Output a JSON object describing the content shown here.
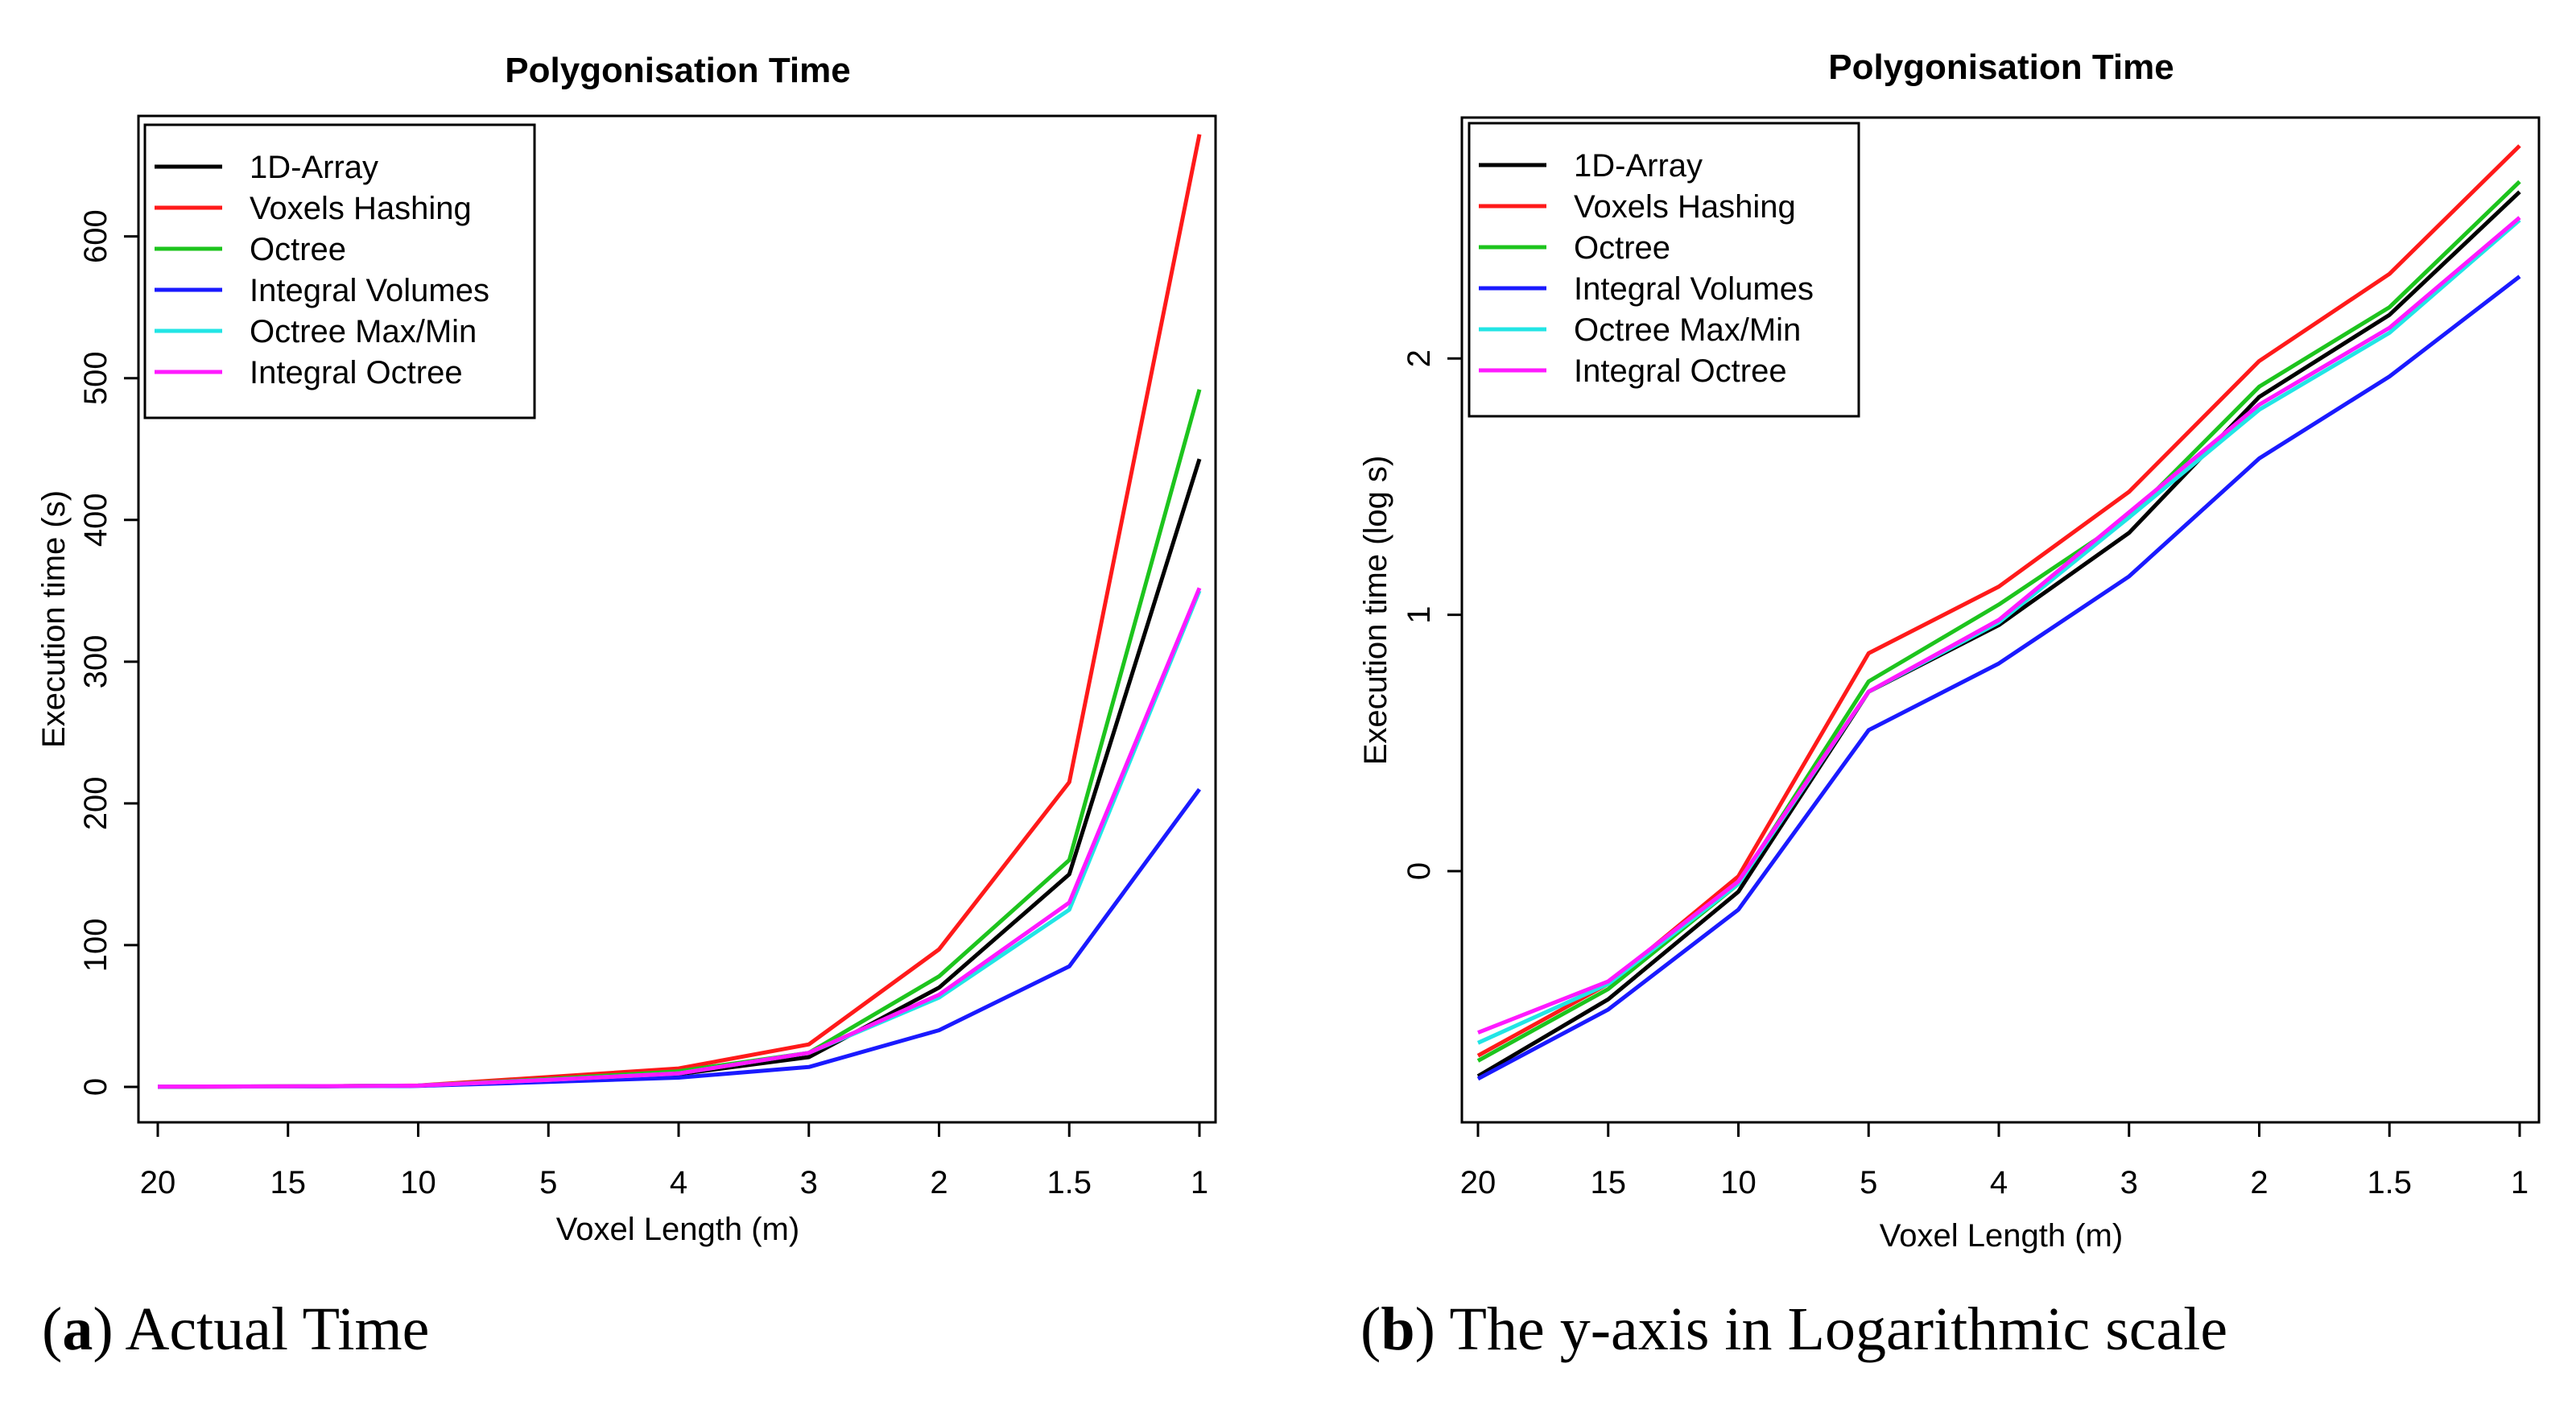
{
  "chart_data": [
    {
      "type": "line",
      "title": "Polygonisation Time",
      "xlabel": "Voxel Length (m)",
      "ylabel": "Execution time (s)",
      "categories": [
        "20",
        "15",
        "10",
        "5",
        "4",
        "3",
        "2",
        "1.5",
        "1"
      ],
      "ylim": [
        -25,
        685
      ],
      "yticks": [
        0,
        100,
        200,
        300,
        400,
        500,
        600
      ],
      "legend_position": "top-left",
      "grid": false,
      "series": [
        {
          "name": "1D-Array",
          "color": "#000000",
          "values": [
            0.17,
            0.32,
            0.85,
            5,
            9,
            21,
            70,
            150,
            443
          ]
        },
        {
          "name": "Voxels Hashing",
          "color": "#ff1a1a",
          "values": [
            0.19,
            0.36,
            0.95,
            7,
            13,
            30,
            97,
            215,
            672
          ]
        },
        {
          "name": "Octree",
          "color": "#1dc41d",
          "values": [
            0.18,
            0.33,
            0.9,
            5.5,
            11,
            24,
            78,
            160,
            492
          ]
        },
        {
          "name": "Integral Volumes",
          "color": "#1a1aff",
          "values": [
            0.16,
            0.28,
            0.7,
            3.5,
            6.5,
            14,
            40,
            85,
            210
          ]
        },
        {
          "name": "Octree Max/Min",
          "color": "#22e5e5",
          "values": [
            0.21,
            0.36,
            0.9,
            5,
            9.5,
            24,
            63,
            125,
            350
          ]
        },
        {
          "name": "Integral Octree",
          "color": "#ff1aff",
          "values": [
            0.23,
            0.37,
            0.92,
            5,
            9.5,
            24,
            65,
            130,
            352
          ]
        }
      ]
    },
    {
      "type": "line",
      "title": "Polygonisation Time",
      "xlabel": "Voxel Length (m)",
      "ylabel": "Execution time (log s)",
      "categories": [
        "20",
        "15",
        "10",
        "5",
        "4",
        "3",
        "2",
        "1.5",
        "1"
      ],
      "ylim": [
        -0.98,
        2.94
      ],
      "yticks": [
        0,
        1,
        2
      ],
      "legend_position": "top-left",
      "grid": false,
      "series": [
        {
          "name": "1D-Array",
          "color": "#000000",
          "values": [
            -0.8,
            -0.5,
            -0.08,
            0.7,
            0.96,
            1.32,
            1.85,
            2.17,
            2.65
          ]
        },
        {
          "name": "Voxels Hashing",
          "color": "#ff1a1a",
          "values": [
            -0.72,
            -0.44,
            -0.02,
            0.85,
            1.11,
            1.48,
            1.99,
            2.33,
            2.83
          ]
        },
        {
          "name": "Octree",
          "color": "#1dc41d",
          "values": [
            -0.74,
            -0.46,
            -0.05,
            0.74,
            1.04,
            1.38,
            1.89,
            2.2,
            2.69
          ]
        },
        {
          "name": "Integral Volumes",
          "color": "#1a1aff",
          "values": [
            -0.81,
            -0.54,
            -0.15,
            0.55,
            0.81,
            1.15,
            1.61,
            1.93,
            2.32
          ]
        },
        {
          "name": "Octree Max/Min",
          "color": "#22e5e5",
          "values": [
            -0.67,
            -0.44,
            -0.05,
            0.7,
            0.97,
            1.38,
            1.8,
            2.1,
            2.54
          ]
        },
        {
          "name": "Integral Octree",
          "color": "#ff1aff",
          "values": [
            -0.63,
            -0.43,
            -0.04,
            0.7,
            0.98,
            1.4,
            1.82,
            2.12,
            2.55
          ]
        }
      ]
    }
  ],
  "captions": [
    {
      "letter": "a",
      "text": "Actual Time"
    },
    {
      "letter": "b",
      "text": "The y-axis in Logarithmic scale"
    }
  ]
}
